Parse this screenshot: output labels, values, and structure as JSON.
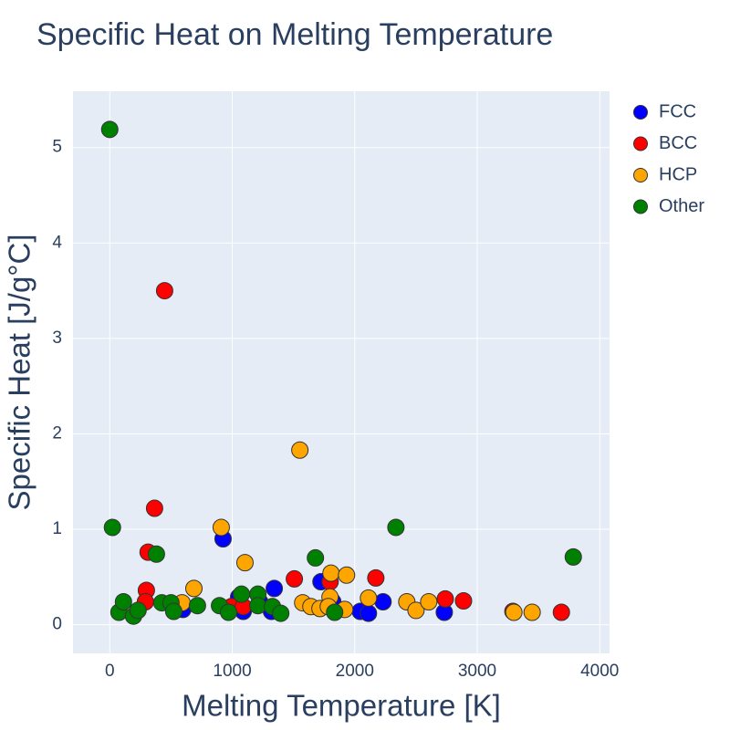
{
  "chart_data": {
    "type": "scatter",
    "title": "Specific Heat on Melting Temperature",
    "x_label": "Melting Temperature [K]",
    "y_label": "Specific Heat [J/g°C]",
    "xlim": [
      -300,
      4080
    ],
    "ylim": [
      -0.3,
      5.59
    ],
    "xticks": [
      0,
      1000,
      2000,
      3000,
      4000
    ],
    "yticks": [
      0,
      1,
      2,
      3,
      4,
      5
    ],
    "grid": true,
    "legend": "outside-right",
    "series": [
      {
        "name": "FCC",
        "color": "#0000ff",
        "x": [
          925,
          1052,
          1090,
          1224,
          1343,
          1320,
          1724,
          1821,
          2045,
          2112,
          2231,
          2731,
          597
        ],
        "values": [
          0.9,
          0.29,
          0.14,
          0.24,
          0.38,
          0.14,
          0.45,
          0.24,
          0.14,
          0.12,
          0.24,
          0.13,
          0.16
        ]
      },
      {
        "name": "BCC",
        "color": "#ff0000",
        "x": [
          448,
          366,
          313,
          299,
          291,
          993,
          1507,
          1799,
          2172,
          2739,
          2888,
          3291,
          3687,
          1090
        ],
        "values": [
          3.5,
          1.22,
          0.76,
          0.36,
          0.24,
          0.19,
          0.48,
          0.45,
          0.49,
          0.27,
          0.25,
          0.14,
          0.13,
          0.19
        ]
      },
      {
        "name": "HCP",
        "color": "#ffa500",
        "x": [
          1552,
          910,
          1104,
          687,
          590,
          1575,
          1642,
          1716,
          1806,
          1798,
          1933,
          1784,
          1918,
          2112,
          2425,
          2500,
          2604,
          3299,
          3448
        ],
        "values": [
          1.83,
          1.02,
          0.65,
          0.38,
          0.23,
          0.23,
          0.19,
          0.17,
          0.54,
          0.29,
          0.52,
          0.19,
          0.16,
          0.28,
          0.24,
          0.15,
          0.24,
          0.13,
          0.13
        ]
      },
      {
        "name": "Other",
        "color": "#008000",
        "x": [
          0,
          22,
          381,
          75,
          112,
          194,
          231,
          425,
          500,
          522,
          716,
          896,
          970,
          1075,
          1209,
          1209,
          1328,
          1396,
          1679,
          1836,
          2336,
          3784
        ],
        "values": [
          5.19,
          1.02,
          0.74,
          0.13,
          0.24,
          0.09,
          0.15,
          0.23,
          0.23,
          0.14,
          0.2,
          0.2,
          0.13,
          0.32,
          0.32,
          0.2,
          0.19,
          0.12,
          0.7,
          0.13,
          1.02,
          0.71
        ]
      }
    ]
  }
}
